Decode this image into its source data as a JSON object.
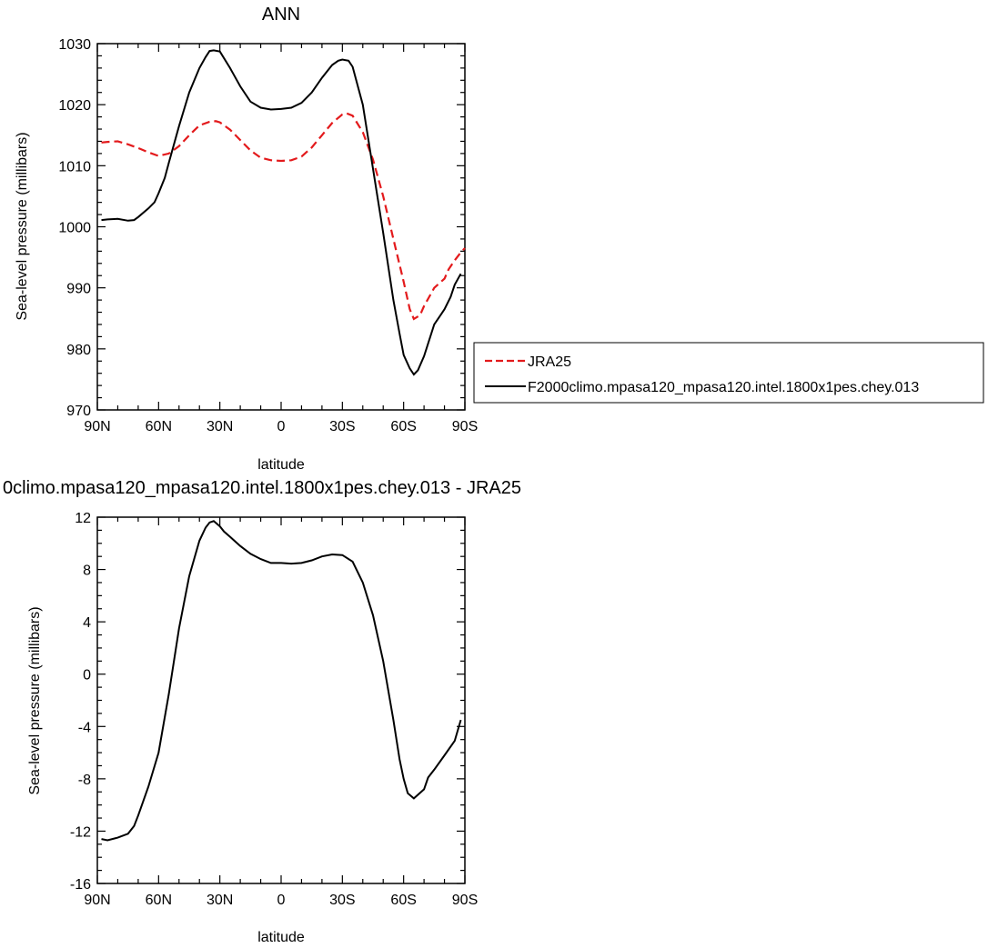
{
  "chart_data": [
    {
      "type": "line",
      "title": "ANN",
      "xlabel": "latitude",
      "ylabel": "Sea-level pressure (millibars)",
      "xlim": [
        90,
        -90
      ],
      "ylim": [
        970,
        1030
      ],
      "x_tick_labels": [
        "90N",
        "60N",
        "30N",
        "0",
        "30S",
        "60S",
        "90S"
      ],
      "y_tick_labels": [
        "970",
        "980",
        "990",
        "1000",
        "1010",
        "1020",
        "1030"
      ],
      "legend_position": "right",
      "series": [
        {
          "name": "JRA25",
          "color": "#e31a1c",
          "dash": "dashed",
          "x": [
            88,
            85,
            80,
            75,
            70,
            65,
            60,
            55,
            50,
            45,
            40,
            35,
            32,
            30,
            25,
            20,
            15,
            10,
            5,
            0,
            -5,
            -10,
            -15,
            -20,
            -25,
            -30,
            -32,
            -35,
            -40,
            -45,
            -50,
            -55,
            -60,
            -63,
            -65,
            -68,
            -70,
            -75,
            -80,
            -82,
            -85,
            -88,
            -90
          ],
          "values": [
            1013.8,
            1013.9,
            1014.0,
            1013.5,
            1012.9,
            1012.2,
            1011.6,
            1012.0,
            1013.2,
            1015.0,
            1016.6,
            1017.2,
            1017.3,
            1017.1,
            1015.9,
            1014.2,
            1012.5,
            1011.3,
            1010.9,
            1010.8,
            1010.9,
            1011.5,
            1013.0,
            1015.0,
            1017.0,
            1018.4,
            1018.6,
            1018.2,
            1015.5,
            1011.0,
            1005.0,
            998.0,
            991.0,
            986.5,
            984.9,
            985.5,
            987.0,
            990.0,
            991.5,
            993.0,
            994.5,
            995.8,
            996.5
          ]
        },
        {
          "name": "F2000climo.mpasa120_mpasa120.intel.1800x1pes.chey.013",
          "color": "#000000",
          "dash": "solid",
          "x": [
            88,
            85,
            80,
            75,
            72,
            70,
            65,
            62,
            60,
            57,
            55,
            50,
            45,
            40,
            37,
            35,
            33,
            30,
            25,
            20,
            15,
            10,
            5,
            0,
            -5,
            -10,
            -15,
            -20,
            -25,
            -28,
            -30,
            -33,
            -35,
            -40,
            -45,
            -50,
            -55,
            -58,
            -60,
            -63,
            -65,
            -67,
            -70,
            -75,
            -78,
            -80,
            -83,
            -85,
            -88
          ],
          "values": [
            1001.1,
            1001.2,
            1001.3,
            1001.0,
            1001.1,
            1001.6,
            1003.0,
            1004.0,
            1005.5,
            1008.0,
            1010.5,
            1016.5,
            1022.0,
            1026.0,
            1027.8,
            1028.8,
            1028.9,
            1028.7,
            1026.0,
            1023.0,
            1020.5,
            1019.5,
            1019.2,
            1019.3,
            1019.5,
            1020.3,
            1022.0,
            1024.4,
            1026.5,
            1027.2,
            1027.4,
            1027.2,
            1026.2,
            1020.0,
            1009.5,
            999.0,
            988.0,
            982.5,
            979.0,
            976.8,
            975.8,
            976.5,
            978.8,
            984.0,
            985.5,
            986.5,
            988.5,
            990.5,
            992.3
          ]
        }
      ],
      "legend": [
        "JRA25",
        "F2000climo.mpasa120_mpasa120.intel.1800x1pes.chey.013"
      ]
    },
    {
      "type": "line",
      "title": "0climo.mpasa120_mpasa120.intel.1800x1pes.chey.013 - JRA25",
      "xlabel": "latitude",
      "ylabel": "Sea-level pressure (millibars)",
      "xlim": [
        90,
        -90
      ],
      "ylim": [
        -16,
        12
      ],
      "x_tick_labels": [
        "90N",
        "60N",
        "30N",
        "0",
        "30S",
        "60S",
        "90S"
      ],
      "y_tick_labels": [
        "-16",
        "-12",
        "-8",
        "-4",
        "0",
        "4",
        "8",
        "12"
      ],
      "series": [
        {
          "color": "#000000",
          "dash": "solid",
          "x": [
            88,
            85,
            80,
            75,
            72,
            70,
            65,
            60,
            55,
            50,
            45,
            40,
            37,
            35,
            33,
            30,
            28,
            25,
            20,
            15,
            10,
            5,
            0,
            -5,
            -10,
            -15,
            -20,
            -25,
            -30,
            -35,
            -40,
            -45,
            -50,
            -55,
            -58,
            -60,
            -62,
            -65,
            -70,
            -72,
            -75,
            -80,
            -85,
            -88
          ],
          "values": [
            -12.6,
            -12.7,
            -12.5,
            -12.2,
            -11.6,
            -10.8,
            -8.6,
            -6.0,
            -1.5,
            3.5,
            7.5,
            10.2,
            11.2,
            11.6,
            11.7,
            11.3,
            10.9,
            10.5,
            9.8,
            9.2,
            8.8,
            8.5,
            8.5,
            8.45,
            8.5,
            8.7,
            9.0,
            9.15,
            9.1,
            8.6,
            7.0,
            4.5,
            1.0,
            -3.5,
            -6.5,
            -8.0,
            -9.1,
            -9.5,
            -8.8,
            -7.9,
            -7.3,
            -6.2,
            -5.1,
            -3.5
          ]
        }
      ]
    }
  ]
}
